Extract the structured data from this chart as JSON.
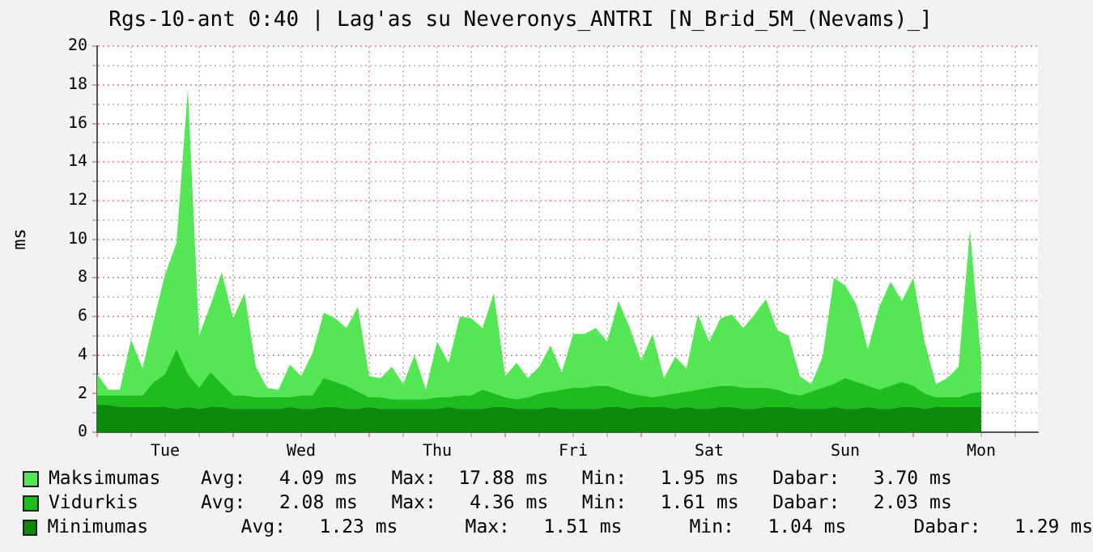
{
  "chart_data": {
    "type": "area",
    "title": "Rgs-10-ant 0:40 | Lag'as su Neveronys_ANTRI [N_Brid_5M_(Nevams)_]",
    "ylabel": "ms",
    "categories": [
      null,
      null,
      null,
      null,
      null,
      null,
      "Tue",
      null,
      null,
      null,
      null,
      null,
      null,
      null,
      null,
      null,
      null,
      null,
      "Wed",
      null,
      null,
      null,
      null,
      null,
      null,
      null,
      null,
      null,
      null,
      null,
      "Thu",
      null,
      null,
      null,
      null,
      null,
      null,
      null,
      null,
      null,
      null,
      null,
      "Fri",
      null,
      null,
      null,
      null,
      null,
      null,
      null,
      null,
      null,
      null,
      null,
      "Sat",
      null,
      null,
      null,
      null,
      null,
      null,
      null,
      null,
      null,
      null,
      null,
      "Sun",
      null,
      null,
      null,
      null,
      null,
      null,
      null,
      null,
      null,
      null,
      null,
      "Mon",
      null,
      null,
      null,
      null,
      null
    ],
    "ylim": [
      0,
      20
    ],
    "yticks": [
      0,
      {
        "value": 1,
        "label": null
      },
      2,
      {
        "value": 3,
        "label": null
      },
      4,
      {
        "value": 5,
        "label": null
      },
      6,
      {
        "value": 7,
        "label": null
      },
      8,
      {
        "value": 9,
        "label": null
      },
      10,
      {
        "value": 11,
        "label": null
      },
      12,
      {
        "value": 13,
        "label": null
      },
      14,
      {
        "value": 15,
        "label": null
      },
      16,
      {
        "value": 17,
        "label": null
      },
      18,
      {
        "value": 19,
        "label": null
      },
      20
    ],
    "grid": true,
    "legend": "bottom",
    "series": [
      {
        "name": "Maksimumas",
        "color": "#55e655",
        "values": [
          3.0,
          2.2,
          2.2,
          4.8,
          3.3,
          5.8,
          8.2,
          9.8,
          17.8,
          5.0,
          6.6,
          8.3,
          5.9,
          7.2,
          3.4,
          2.3,
          2.2,
          3.5,
          2.9,
          4.1,
          6.2,
          5.9,
          5.4,
          6.5,
          2.9,
          2.8,
          3.4,
          2.5,
          4.0,
          2.2,
          4.7,
          3.6,
          6.0,
          5.9,
          5.4,
          7.2,
          2.9,
          3.6,
          2.8,
          3.4,
          4.5,
          3.1,
          5.1,
          5.1,
          5.4,
          4.7,
          6.8,
          5.4,
          3.7,
          5.1,
          2.8,
          3.9,
          3.3,
          6.1,
          4.7,
          5.9,
          6.1,
          5.4,
          6.1,
          6.9,
          5.3,
          5.0,
          2.9,
          2.5,
          3.9,
          8.0,
          7.6,
          6.6,
          4.3,
          6.5,
          7.8,
          6.8,
          8.0,
          4.7,
          2.5,
          2.8,
          3.4,
          10.5,
          3.7,
          null,
          null,
          null,
          null,
          null
        ]
      },
      {
        "name": "Vidurkis",
        "color": "#1ebd1e",
        "values": [
          1.9,
          1.9,
          1.9,
          1.9,
          1.9,
          2.6,
          3.0,
          4.3,
          3.0,
          2.3,
          3.1,
          2.5,
          1.9,
          1.9,
          1.8,
          1.8,
          1.8,
          1.8,
          1.9,
          1.9,
          2.8,
          2.6,
          2.4,
          2.1,
          1.8,
          1.8,
          1.7,
          1.7,
          1.7,
          1.7,
          1.8,
          1.8,
          1.9,
          1.9,
          2.2,
          2.0,
          1.8,
          1.7,
          1.8,
          2.0,
          2.1,
          2.2,
          2.3,
          2.3,
          2.4,
          2.4,
          2.2,
          2.0,
          1.9,
          1.8,
          1.9,
          2.0,
          2.1,
          2.2,
          2.3,
          2.4,
          2.4,
          2.3,
          2.3,
          2.3,
          2.2,
          2.0,
          1.9,
          2.1,
          2.3,
          2.5,
          2.8,
          2.6,
          2.4,
          2.2,
          2.4,
          2.6,
          2.4,
          2.0,
          1.8,
          1.8,
          1.8,
          2.0,
          2.1,
          null,
          null,
          null,
          null,
          null
        ]
      },
      {
        "name": "Minimumas",
        "color": "#0d8a0d",
        "values": [
          1.4,
          1.4,
          1.3,
          1.3,
          1.3,
          1.3,
          1.3,
          1.2,
          1.3,
          1.2,
          1.3,
          1.3,
          1.2,
          1.2,
          1.2,
          1.2,
          1.2,
          1.3,
          1.2,
          1.2,
          1.3,
          1.3,
          1.2,
          1.2,
          1.3,
          1.2,
          1.2,
          1.2,
          1.2,
          1.2,
          1.2,
          1.3,
          1.2,
          1.2,
          1.2,
          1.3,
          1.3,
          1.2,
          1.2,
          1.2,
          1.3,
          1.2,
          1.2,
          1.2,
          1.2,
          1.3,
          1.3,
          1.2,
          1.3,
          1.3,
          1.3,
          1.2,
          1.3,
          1.2,
          1.2,
          1.3,
          1.3,
          1.2,
          1.2,
          1.3,
          1.3,
          1.3,
          1.2,
          1.2,
          1.2,
          1.3,
          1.2,
          1.2,
          1.3,
          1.2,
          1.2,
          1.3,
          1.3,
          1.2,
          1.3,
          1.3,
          1.3,
          1.3,
          1.3,
          null,
          null,
          null,
          null,
          null
        ]
      }
    ],
    "annotations": [
      "Avg:   4.09 ms   Max:  17.88 ms   Min:   1.95 ms   Dabar:   3.70 ms",
      "Avg:   2.08 ms   Max:   4.36 ms   Min:   1.61 ms   Dabar:   2.03 ms",
      "     Avg:   1.23 ms      Max:   1.51 ms      Min:   1.04 ms      Dabar:   1.29 ms"
    ]
  }
}
